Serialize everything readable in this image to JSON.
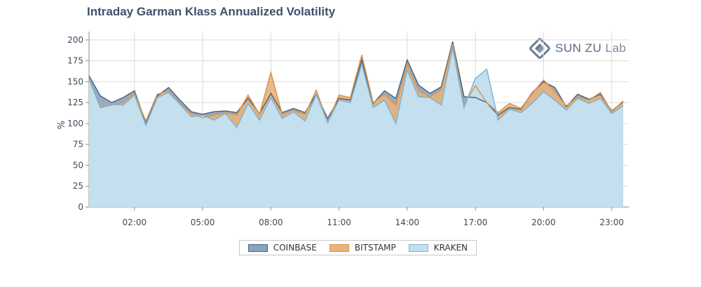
{
  "title": "Intraday Garman Klass Annualized Volatility",
  "logo": {
    "brand": "SUN ZU",
    "suffix": "Lab"
  },
  "colors": {
    "coinbase_fill": "#8aa4bf",
    "coinbase_line": "#4a6583",
    "bitstamp_fill": "#e8b27a",
    "bitstamp_line": "#d9954d",
    "kraken_fill": "#c4dfee",
    "kraken_line": "#7fb2d3"
  },
  "chart_data": {
    "type": "area",
    "title": "Intraday Garman Klass Annualized Volatility",
    "ylabel": "%",
    "xlabel": "",
    "ylim": [
      0,
      210
    ],
    "yticks": [
      0,
      25,
      50,
      75,
      100,
      125,
      150,
      175,
      200
    ],
    "xtick_labels": [
      "02:00",
      "05:00",
      "08:00",
      "11:00",
      "14:00",
      "17:00",
      "20:00",
      "23:00"
    ],
    "xtick_hours": [
      2,
      5,
      8,
      11,
      14,
      17,
      20,
      23
    ],
    "x_hours": [
      0,
      0.5,
      1,
      1.5,
      2,
      2.5,
      3,
      3.5,
      4,
      4.5,
      5,
      5.5,
      6,
      6.5,
      7,
      7.5,
      8,
      8.5,
      9,
      9.5,
      10,
      10.5,
      11,
      11.5,
      12,
      12.5,
      13,
      13.5,
      14,
      14.5,
      15,
      15.5,
      16,
      16.5,
      17,
      17.5,
      18,
      18.5,
      19,
      19.5,
      20,
      20.5,
      21,
      21.5,
      22,
      22.5,
      23,
      23.5
    ],
    "grid": true,
    "legend_position": "bottom",
    "series": [
      {
        "name": "COINBASE",
        "values": [
          157,
          133,
          125,
          131,
          139,
          101,
          133,
          143,
          128,
          114,
          111,
          114,
          115,
          113,
          130,
          112,
          136,
          113,
          118,
          113,
          135,
          106,
          130,
          128,
          176,
          124,
          139,
          130,
          176,
          146,
          136,
          144,
          198,
          132,
          131,
          125,
          110,
          119,
          117,
          137,
          150,
          143,
          120,
          135,
          129,
          135,
          115,
          126
        ]
      },
      {
        "name": "BITSTAMP",
        "values": [
          153,
          119,
          122,
          125,
          136,
          103,
          135,
          139,
          124,
          112,
          107,
          110,
          113,
          110,
          134,
          111,
          161,
          111,
          116,
          111,
          140,
          101,
          134,
          131,
          182,
          125,
          135,
          122,
          170,
          139,
          132,
          140,
          195,
          123,
          145,
          125,
          113,
          124,
          118,
          136,
          152,
          138,
          121,
          132,
          128,
          137,
          114,
          127
        ]
      },
      {
        "name": "KRAKEN",
        "values": [
          153,
          120,
          123,
          122,
          134,
          98,
          131,
          137,
          123,
          108,
          110,
          104,
          112,
          95,
          124,
          104,
          131,
          106,
          114,
          103,
          135,
          101,
          128,
          125,
          171,
          119,
          128,
          100,
          164,
          132,
          131,
          122,
          190,
          119,
          154,
          165,
          104,
          117,
          113,
          124,
          138,
          128,
          116,
          130,
          124,
          130,
          112,
          121
        ]
      }
    ]
  }
}
